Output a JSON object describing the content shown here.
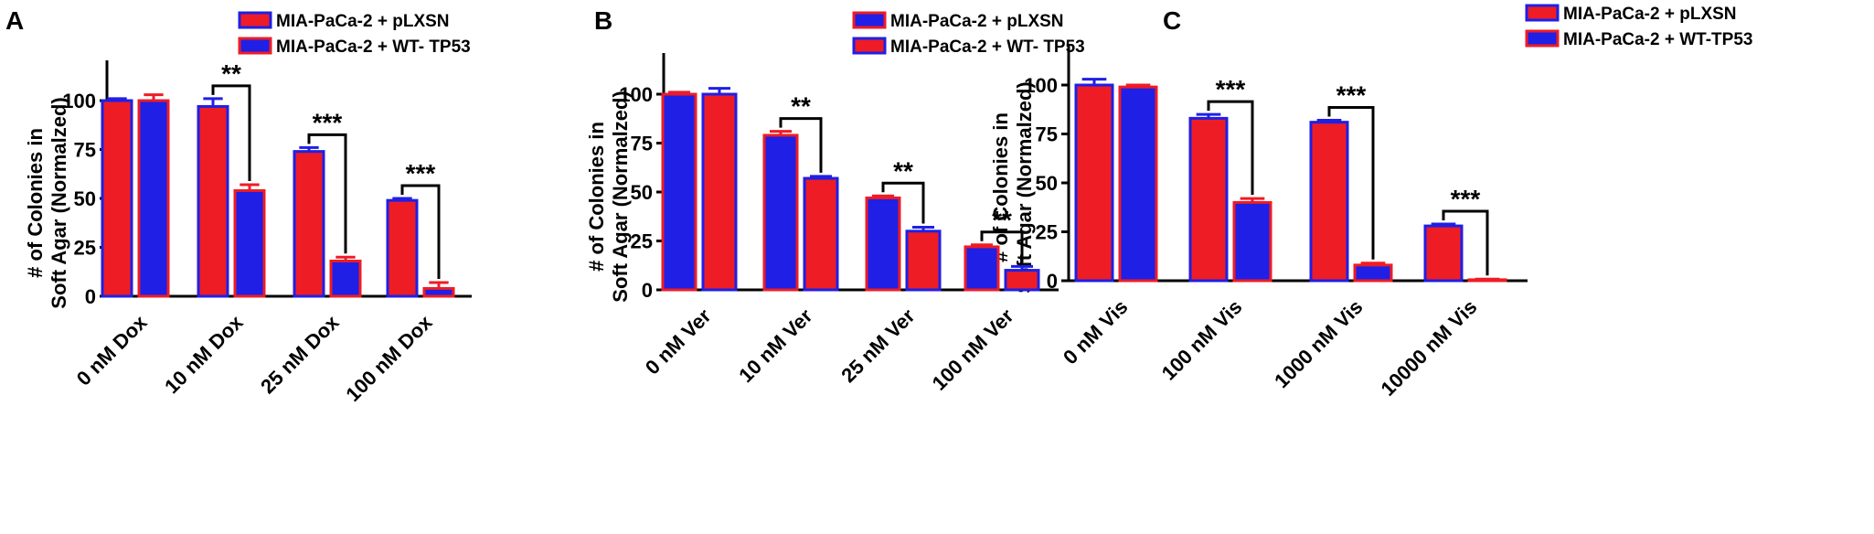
{
  "colors": {
    "red": "#ee1c25",
    "blue": "#1f1fe6",
    "black": "#000000"
  },
  "legend_labels": {
    "pLXSN": "MIA-PaCa-2 + pLXSN",
    "WT_TP53_A": "MIA-PaCa-2 + WT- TP53",
    "WT_TP53_C": "MIA-PaCa-2 + WT-TP53"
  },
  "chart_data": [
    {
      "panel_label": "A",
      "type": "bar",
      "ylabel_line1": "# of Colonies in",
      "ylabel_line2": "Soft Agar (Normalzed)",
      "ylim": [
        0,
        120
      ],
      "yticks": [
        "0",
        "25",
        "50",
        "75",
        "100"
      ],
      "categories": [
        "0 nM Dox",
        "10 nM Dox",
        "25 nM Dox",
        "100 nM Dox"
      ],
      "series": [
        {
          "name": "MIA-PaCa-2 + pLXSN",
          "fill": "red",
          "border": "blue",
          "values": [
            100,
            97,
            74,
            49
          ],
          "errors": [
            1,
            4,
            2,
            1
          ]
        },
        {
          "name": "MIA-PaCa-2 + WT- TP53",
          "fill": "blue",
          "border": "red",
          "values": [
            100,
            54,
            18,
            4
          ],
          "errors": [
            3,
            3,
            2,
            3
          ]
        }
      ],
      "significance": [
        "",
        "**",
        "***",
        "***"
      ]
    },
    {
      "panel_label": "B",
      "type": "bar",
      "ylabel_line1": "# of Colonies in",
      "ylabel_line2": "Soft Agar (Normalzed)",
      "ylim": [
        0,
        120
      ],
      "yticks": [
        "0",
        "25",
        "50",
        "75",
        "100"
      ],
      "categories": [
        "0 nM Ver",
        "10 nM Ver",
        "25 nM Ver",
        "100 nM Ver"
      ],
      "series": [
        {
          "name": "MIA-PaCa-2 + pLXSN",
          "fill": "blue",
          "border": "red",
          "values": [
            100,
            79,
            47,
            22
          ],
          "errors": [
            1,
            2,
            1,
            1
          ]
        },
        {
          "name": "MIA-PaCa-2 + WT- TP53",
          "fill": "red",
          "border": "blue",
          "values": [
            100,
            57,
            30,
            10
          ],
          "errors": [
            3,
            1,
            2,
            2
          ]
        }
      ],
      "significance": [
        "",
        "**",
        "**",
        "**"
      ]
    },
    {
      "panel_label": "C",
      "type": "bar",
      "ylabel_line1": "# of Colonies in",
      "ylabel_line2": "Soft Agar (Normalzed)",
      "ylim": [
        0,
        120
      ],
      "yticks": [
        "0",
        "25",
        "50",
        "75",
        "100"
      ],
      "categories": [
        "0 nM Vis",
        "100 nM Vis",
        "1000 nM Vis",
        "10000 nM Vis"
      ],
      "series": [
        {
          "name": "MIA-PaCa-2 + pLXSN",
          "fill": "red",
          "border": "blue",
          "values": [
            100,
            83,
            81,
            28
          ],
          "errors": [
            3,
            2,
            1,
            1
          ]
        },
        {
          "name": "MIA-PaCa-2 + WT-TP53",
          "fill": "blue",
          "border": "red",
          "values": [
            99,
            40,
            8,
            0.5
          ],
          "errors": [
            1,
            2,
            1,
            0.3
          ]
        }
      ],
      "significance": [
        "",
        "***",
        "***",
        "***"
      ]
    }
  ]
}
